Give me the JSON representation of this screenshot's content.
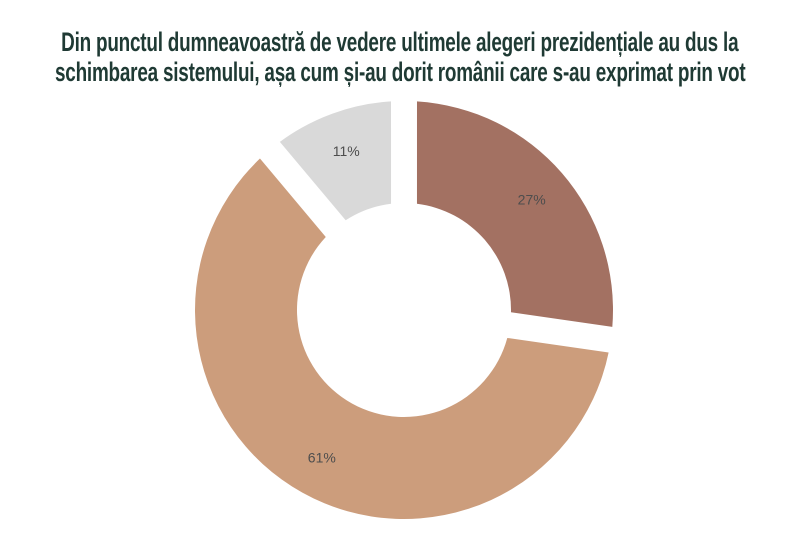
{
  "title": {
    "line1": "Din punctul dumneavoastră de vedere ultimele alegeri prezidențiale au dus la",
    "line2": "schimbarea sistemului, așa cum și-au dorit românii care s-au exprimat prin vot"
  },
  "colors": {
    "background": "#ffffff",
    "title_text": "#1f3a34",
    "slice_label_text": "#4d4d4d"
  },
  "chart_data": {
    "type": "pie",
    "subtype": "donut",
    "title": "Din punctul dumneavoastră de vedere ultimele alegeri prezidențiale au dus la schimbarea sistemului, așa cum și-au dorit românii care s-au exprimat prin vot",
    "direction": "clockwise",
    "start_angle_deg": 0,
    "inner_radius_ratio": 0.51,
    "slice_gap": "wide white gaps between slices",
    "legend": "none",
    "labels_position": "inside slices",
    "segments": [
      {
        "label": "27%",
        "value": 27,
        "color": "#a37162"
      },
      {
        "label": "61%",
        "value": 61,
        "color": "#cc9d7c"
      },
      {
        "label": "11%",
        "value": 11,
        "color": "#d9d9d9"
      }
    ]
  }
}
